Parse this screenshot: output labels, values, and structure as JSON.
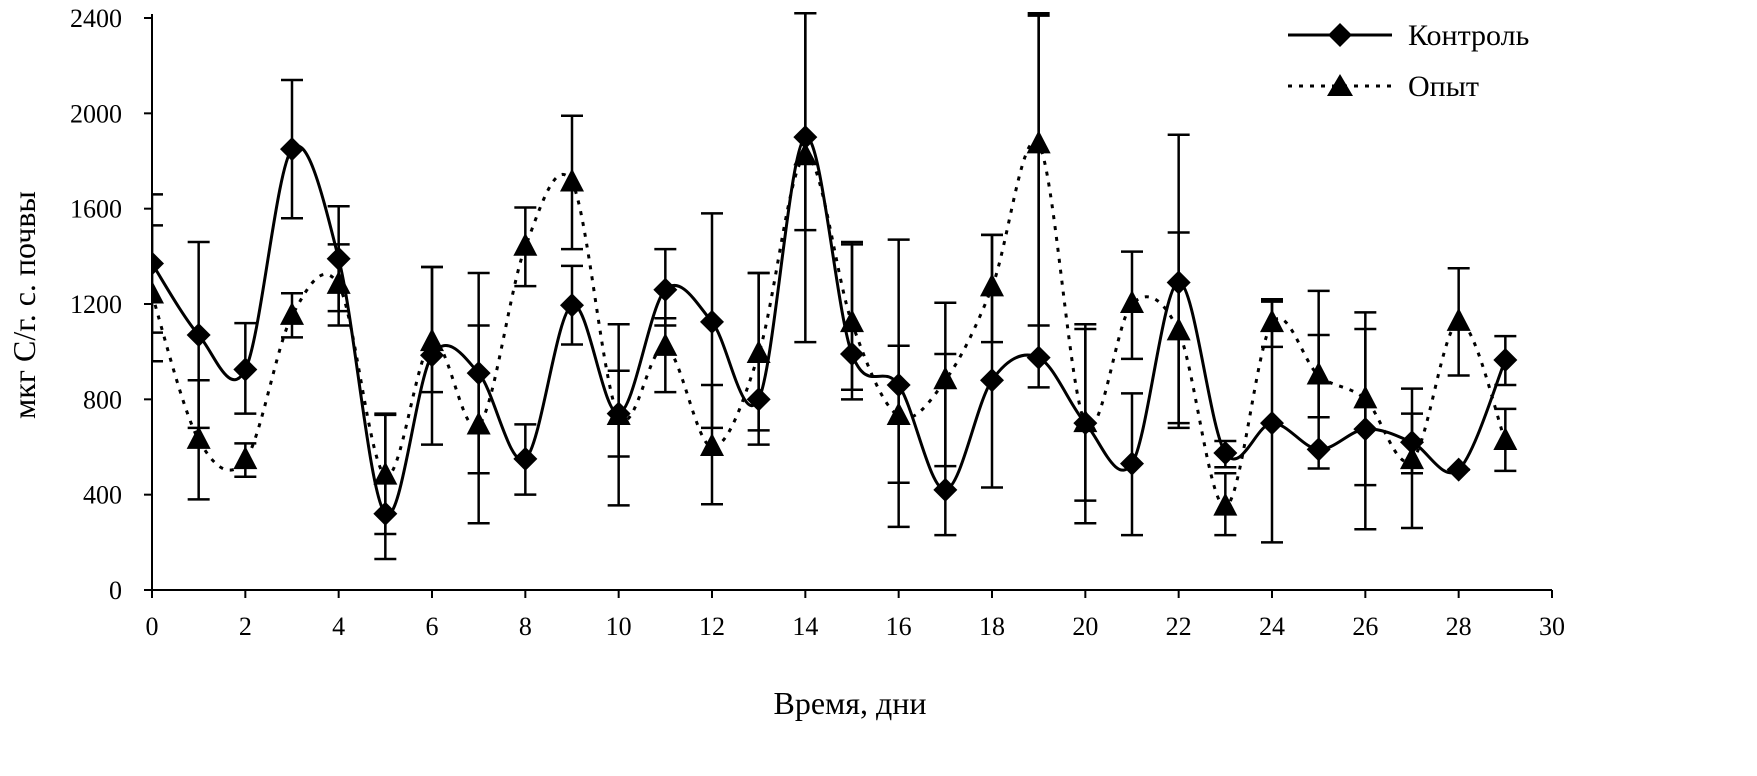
{
  "chart_data": {
    "type": "line",
    "title": "",
    "xlabel": "Время, дни",
    "ylabel": "мкг С/г. с. почвы",
    "xlim": [
      0,
      30
    ],
    "ylim": [
      0,
      2400
    ],
    "x_ticks": [
      "0",
      "2",
      "4",
      "6",
      "8",
      "10",
      "12",
      "14",
      "16",
      "18",
      "20",
      "22",
      "24",
      "26",
      "28",
      "30"
    ],
    "y_ticks": [
      "0",
      "400",
      "800",
      "1200",
      "1600",
      "2000",
      "2400"
    ],
    "x_tick_values": [
      0,
      2,
      4,
      6,
      8,
      10,
      12,
      14,
      16,
      18,
      20,
      22,
      24,
      26,
      28,
      30
    ],
    "y_tick_values": [
      0,
      400,
      800,
      1200,
      1600,
      2000,
      2400
    ],
    "legend_position": "top-right",
    "series": [
      {
        "name": "Контроль",
        "marker": "diamond",
        "line_style": "solid",
        "smooth": true,
        "color": "#000000",
        "x": [
          0,
          1,
          2,
          3,
          4,
          5,
          6,
          7,
          8,
          9,
          10,
          11,
          12,
          13,
          14,
          15,
          16,
          17,
          18,
          19,
          20,
          21,
          22,
          23,
          24,
          25,
          26,
          27,
          28,
          29
        ],
        "values": [
          1370,
          1070,
          925,
          1850,
          1390,
          320,
          985,
          910,
          550,
          1195,
          740,
          1260,
          1125,
          800,
          1900,
          990,
          860,
          420,
          880,
          975,
          700,
          530,
          1290,
          575,
          700,
          590,
          675,
          620,
          505,
          965
        ],
        "err_low": [
          960,
          680,
          740,
          1560,
          1170,
          130,
          610,
          490,
          400,
          1030,
          355,
          1110,
          680,
          610,
          1510,
          800,
          450,
          230,
          430,
          850,
          280,
          230,
          680,
          515,
          200,
          510,
          255,
          260,
          505,
          860
        ],
        "err_high": [
          1660,
          1460,
          1120,
          2140,
          1610,
          740,
          1355,
          1330,
          695,
          1360,
          1115,
          1430,
          1580,
          1330,
          2420,
          1460,
          1470,
          1205,
          1490,
          2410,
          1095,
          825,
          1910,
          625,
          1220,
          1255,
          1165,
          845,
          505,
          1065
        ]
      },
      {
        "name": "Опыт",
        "marker": "triangle",
        "line_style": "dotted",
        "smooth": true,
        "color": "#000000",
        "x": [
          0,
          1,
          2,
          3,
          4,
          5,
          6,
          7,
          8,
          9,
          10,
          11,
          12,
          13,
          14,
          15,
          16,
          17,
          18,
          19,
          20,
          21,
          22,
          23,
          24,
          25,
          26,
          27,
          28,
          29
        ],
        "values": [
          1240,
          630,
          545,
          1150,
          1280,
          480,
          1040,
          690,
          1440,
          1710,
          730,
          1020,
          600,
          990,
          1820,
          1120,
          730,
          880,
          1270,
          1870,
          700,
          1200,
          1085,
          350,
          1120,
          900,
          800,
          545,
          1125,
          625
        ],
        "err_low": [
          1080,
          380,
          475,
          1060,
          1110,
          235,
          830,
          280,
          1275,
          1430,
          560,
          830,
          360,
          670,
          1040,
          840,
          265,
          520,
          1040,
          1110,
          375,
          970,
          700,
          230,
          1020,
          725,
          440,
          490,
          900,
          500
        ],
        "err_high": [
          1530,
          880,
          615,
          1245,
          1450,
          735,
          1355,
          1110,
          1605,
          1990,
          920,
          1140,
          860,
          1330,
          2420,
          1450,
          1025,
          990,
          1490,
          2420,
          1115,
          1420,
          1500,
          490,
          1210,
          1070,
          1095,
          740,
          1350,
          760
        ]
      }
    ]
  }
}
